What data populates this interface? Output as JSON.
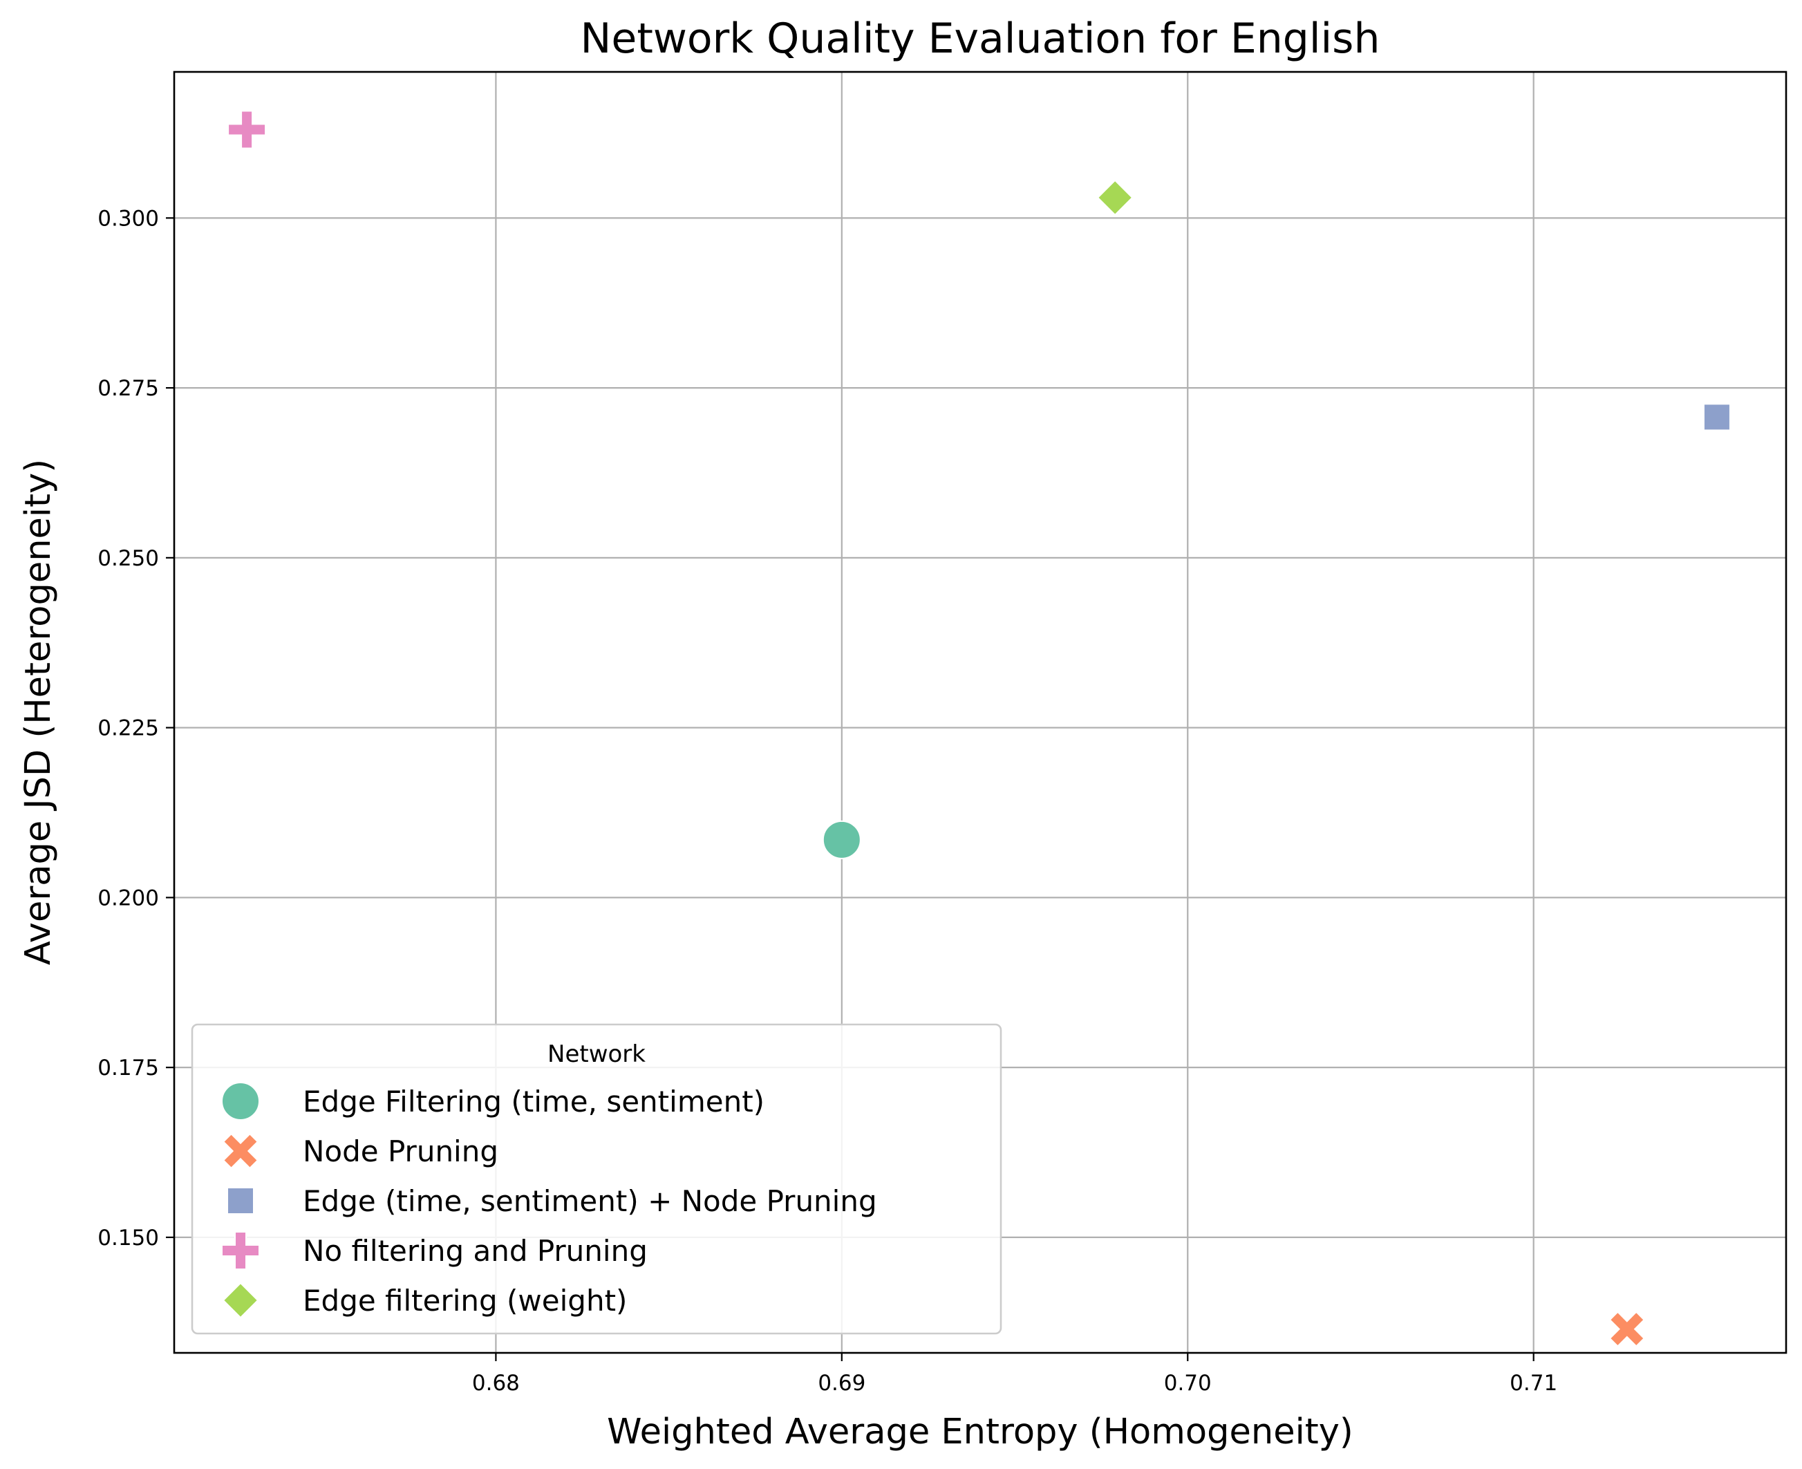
{
  "chart_data": {
    "type": "scatter",
    "title": "Network Quality Evaluation for English",
    "xlabel": "Weighted Average Entropy (Homogeneity)",
    "ylabel": "Average JSD (Heterogeneity)",
    "xlim": [
      0.6707,
      0.7173
    ],
    "ylim": [
      0.133,
      0.3215
    ],
    "x_ticks": [
      0.68,
      0.69,
      0.7,
      0.71
    ],
    "x_tick_labels": [
      "0.68",
      "0.69",
      "0.70",
      "0.71"
    ],
    "y_ticks": [
      0.15,
      0.175,
      0.2,
      0.225,
      0.25,
      0.275,
      0.3
    ],
    "y_tick_labels": [
      "0.150",
      "0.175",
      "0.200",
      "0.225",
      "0.250",
      "0.275",
      "0.300"
    ],
    "grid": true,
    "legend": {
      "title": "Network",
      "placement": "lower-left"
    },
    "series": [
      {
        "name": "Edge Filtering (time, sentiment)",
        "marker": "circle",
        "color": "#66c2a5",
        "x": [
          0.69
        ],
        "y": [
          0.2085
        ]
      },
      {
        "name": "Node Pruning",
        "marker": "x",
        "color": "#fc8d62",
        "x": [
          0.7127
        ],
        "y": [
          0.1365
        ]
      },
      {
        "name": "Edge (time, sentiment) + Node Pruning",
        "marker": "square",
        "color": "#8da0cb",
        "x": [
          0.7153
        ],
        "y": [
          0.2707
        ]
      },
      {
        "name": "No filtering and Pruning",
        "marker": "plus",
        "color": "#e78ac3",
        "x": [
          0.6728
        ],
        "y": [
          0.313
        ]
      },
      {
        "name": "Edge filtering (weight)",
        "marker": "diamond",
        "color": "#a6d854",
        "x": [
          0.6979
        ],
        "y": [
          0.303
        ]
      }
    ]
  }
}
